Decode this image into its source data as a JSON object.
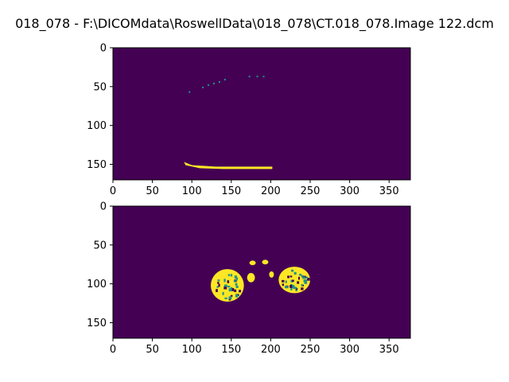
{
  "window": {
    "title": "018_078 - F:\\DICOMdata\\RoswellData\\018_078\\CT.018_078.Image 122.dcm"
  },
  "colors": {
    "background_class": "#440154",
    "foreground_class": "#fde725",
    "mid_class": "#21918c",
    "axes_frame": "#000000"
  },
  "chart_data": [
    {
      "type": "heatmap",
      "colormap": "viridis",
      "xlim": [
        0,
        377
      ],
      "ylim": [
        170,
        0
      ],
      "y_inverted": true,
      "xticks": [
        0,
        50,
        100,
        150,
        200,
        250,
        300,
        350
      ],
      "yticks": [
        0,
        50,
        100,
        150
      ],
      "background_value": 0,
      "annotation": "mostly background; faint dotted arc near y~35-55 (x~95-190); bright horizontal band y~147-156 from x~90 to x~202"
    },
    {
      "type": "heatmap",
      "colormap": "viridis",
      "xlim": [
        0,
        377
      ],
      "ylim": [
        170,
        0
      ],
      "y_inverted": true,
      "xticks": [
        0,
        50,
        100,
        150,
        200,
        250,
        300,
        350
      ],
      "yticks": [
        0,
        50,
        100,
        150
      ],
      "background_value": 0,
      "annotation": "two bright speckled lobes centered near x~145,y~100 and x~230,y~95; small central blobs near x~175-200, y~70-100"
    }
  ]
}
